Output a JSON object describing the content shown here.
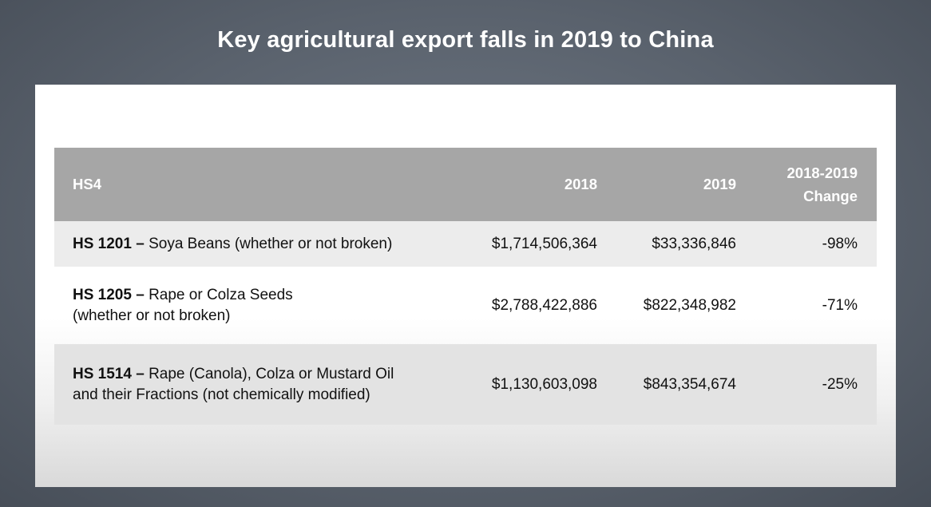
{
  "title": "Key agricultural export falls in 2019 to China",
  "table": {
    "headers": {
      "hs4": "HS4",
      "y2018": "2018",
      "y2019": "2019",
      "change_line1": "2018-2019",
      "change_line2": "Change"
    },
    "rows": [
      {
        "code": "HS 1201 –",
        "desc_line1": " Soya Beans (whether or not broken)",
        "desc_line2": "",
        "v2018": "$1,714,506,364",
        "v2019": "$33,336,846",
        "change": "-98%"
      },
      {
        "code": "HS 1205 –",
        "desc_line1": " Rape or Colza Seeds",
        "desc_line2": "(whether or not broken)",
        "v2018": "$2,788,422,886",
        "v2019": "$822,348,982",
        "change": "-71%"
      },
      {
        "code": "HS 1514 –",
        "desc_line1": " Rape (Canola), Colza or Mustard Oil",
        "desc_line2": "and their Fractions (not chemically modified)",
        "v2018": "$1,130,603,098",
        "v2019": "$843,354,674",
        "change": "-25%"
      }
    ]
  }
}
